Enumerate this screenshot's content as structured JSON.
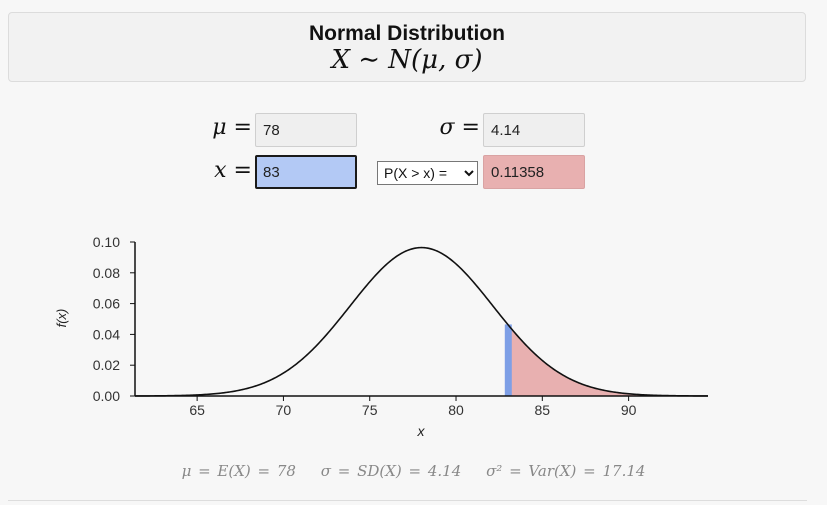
{
  "header": {
    "title": "Normal Distribution",
    "formula": "X ∼ N(μ, σ)"
  },
  "params": {
    "mu_label": "μ =",
    "mu_value": "78",
    "sigma_label": "σ =",
    "sigma_value": "4.14",
    "x_label": "x =",
    "x_value": "83",
    "prob_selected": "P(X > x) =",
    "prob_result": "0.11358"
  },
  "colors": {
    "shade": "#e8b0b0",
    "marker": "#7e9fe6",
    "active_input": "#b3c9f5"
  },
  "chart_data": {
    "type": "area",
    "distribution": "normal",
    "mu": 78,
    "sigma": 4.14,
    "shaded_from": 83,
    "shaded_side": "right",
    "xlim": [
      61.4,
      94.6
    ],
    "ylim": [
      0,
      0.1
    ],
    "xticks": [
      65,
      70,
      75,
      80,
      85,
      90
    ],
    "yticks": [
      "0.00",
      "0.02",
      "0.04",
      "0.06",
      "0.08",
      "0.10"
    ],
    "xlabel": "x",
    "ylabel": "f(x)",
    "grid": false
  },
  "stats": {
    "mean": "μ = E(X) = 78",
    "sd": "σ = SD(X) = 4.14",
    "var": "σ² = Var(X) = 17.14"
  }
}
